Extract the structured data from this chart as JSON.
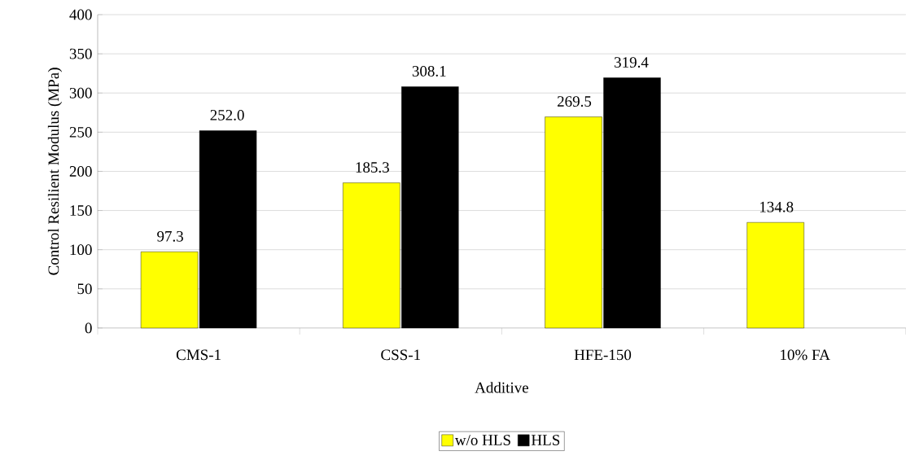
{
  "chart_data": {
    "type": "bar",
    "xlabel": "Additive",
    "ylabel": "Control Resilient Modulus (MPa)",
    "categories": [
      "CMS-1",
      "CSS-1",
      "HFE-150",
      "10% FA"
    ],
    "series": [
      {
        "name": "w/o HLS",
        "color": "#ffff00",
        "values": [
          97.3,
          185.3,
          269.5,
          134.8
        ],
        "value_labels": [
          "97.3",
          "185.3",
          "269.5",
          "134.8"
        ]
      },
      {
        "name": "HLS",
        "color": "#000000",
        "values": [
          252.0,
          308.1,
          319.4,
          null
        ],
        "value_labels": [
          "252.0",
          "308.1",
          "319.4",
          null
        ]
      }
    ],
    "ylim": [
      0,
      400
    ],
    "yticks": [
      0,
      50,
      100,
      150,
      200,
      250,
      300,
      350,
      400
    ],
    "grid": "y",
    "legend": "bottom"
  }
}
